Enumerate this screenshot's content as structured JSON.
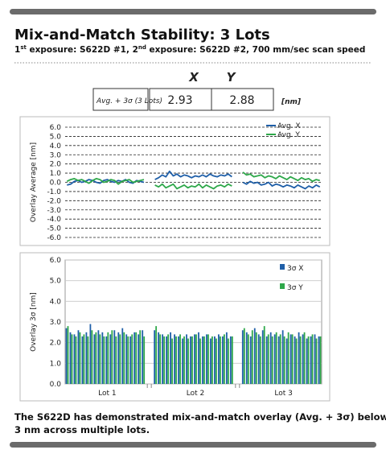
{
  "header": {
    "title": "Mix-and-Match Stability: 3 Lots",
    "subtitle": [
      "1",
      "st",
      " exposure: S622D #1, 2",
      "nd",
      " exposure: S622D #2, 700 mm/sec scan speed"
    ]
  },
  "table": {
    "columns": [
      "X",
      "Y"
    ],
    "row_label": "Avg. + 3σ (3 Lots)",
    "values": [
      2.93,
      2.88
    ],
    "unit": "[nm]"
  },
  "chart_data": [
    {
      "type": "line",
      "ylabel": "Overlay Average [nm]",
      "ylim": [
        -6,
        6
      ],
      "yticks": [
        {
          "value": -6,
          "label": "-6.0"
        },
        {
          "value": -5,
          "label": "-5.0"
        },
        {
          "value": -4,
          "label": "-4.0"
        },
        {
          "value": -3,
          "label": "-3.0"
        },
        {
          "value": -2,
          "label": "-2.0"
        },
        {
          "value": -1,
          "label": "-1.0"
        },
        {
          "value": 0,
          "label": "0.0"
        },
        {
          "value": 1,
          "label": "1.0"
        },
        {
          "value": 2,
          "label": "2.0"
        },
        {
          "value": 3,
          "label": "3.0"
        },
        {
          "value": 4,
          "label": "4.0"
        },
        {
          "value": 5,
          "label": "5.0"
        },
        {
          "value": 6,
          "label": "6.0"
        }
      ],
      "grid": true,
      "grid_style": "dashed",
      "legend": "upper right",
      "series": [
        {
          "name": "Avg. X",
          "color": "#1f5fa8",
          "values": [
            -0.3,
            -0.2,
            0.1,
            0.2,
            0.0,
            0.1,
            0.3,
            0.2,
            0.0,
            -0.1,
            0.2,
            0.3,
            0.1,
            0.0,
            0.2,
            0.1,
            0.3,
            0.0,
            -0.1,
            0.2,
            0.1,
            0.0,
            null,
            null,
            0.3,
            0.5,
            0.8,
            0.6,
            1.2,
            0.7,
            0.9,
            0.6,
            0.8,
            0.7,
            0.5,
            0.7,
            0.6,
            0.8,
            0.6,
            0.9,
            0.7,
            0.6,
            0.8,
            0.7,
            0.9,
            0.6,
            null,
            null,
            0.0,
            -0.2,
            0.1,
            -0.1,
            0.0,
            -0.3,
            -0.2,
            0.0,
            -0.4,
            -0.2,
            -0.3,
            -0.5,
            -0.3,
            -0.4,
            -0.6,
            -0.3,
            -0.5,
            -0.7,
            -0.4,
            -0.6,
            -0.3,
            -0.5
          ]
        },
        {
          "name": "Avg. Y",
          "color": "#2ea84a",
          "values": [
            0.1,
            0.3,
            0.4,
            0.2,
            0.3,
            0.1,
            -0.1,
            0.2,
            0.4,
            0.3,
            0.0,
            0.1,
            0.3,
            0.2,
            -0.2,
            0.1,
            0.2,
            0.3,
            0.0,
            0.1,
            0.2,
            0.3,
            null,
            null,
            -0.3,
            -0.5,
            -0.2,
            -0.6,
            -0.4,
            -0.2,
            -0.7,
            -0.5,
            -0.3,
            -0.6,
            -0.4,
            -0.5,
            -0.2,
            -0.6,
            -0.3,
            -0.5,
            -0.7,
            -0.4,
            -0.3,
            -0.5,
            -0.2,
            -0.4,
            null,
            null,
            1.1,
            0.8,
            0.9,
            0.6,
            0.7,
            0.8,
            0.5,
            0.7,
            0.6,
            0.4,
            0.7,
            0.5,
            0.3,
            0.6,
            0.4,
            0.2,
            0.5,
            0.3,
            0.4,
            0.1,
            0.3,
            0.2
          ]
        }
      ]
    },
    {
      "type": "bar",
      "ylabel": "Overlay 3σ [nm]",
      "ylim": [
        0,
        6
      ],
      "yticks": [
        {
          "value": 0,
          "label": "0.0"
        },
        {
          "value": 1,
          "label": "1.0"
        },
        {
          "value": 2,
          "label": "2.0"
        },
        {
          "value": 3,
          "label": "3.0"
        },
        {
          "value": 4,
          "label": "4.0"
        },
        {
          "value": 5,
          "label": "5.0"
        },
        {
          "value": 6,
          "label": "6.0"
        }
      ],
      "grid": true,
      "grid_style": "solid",
      "legend": "upper right",
      "categories": [
        null,
        null,
        null,
        null,
        null,
        null,
        null,
        null,
        null,
        null,
        "Lot 1",
        null,
        null,
        null,
        null,
        null,
        null,
        null,
        null,
        null,
        null,
        null,
        null,
        null,
        null,
        null,
        null,
        null,
        null,
        null,
        null,
        null,
        "Lot 2",
        null,
        null,
        null,
        null,
        null,
        null,
        null,
        null,
        null,
        null,
        null,
        null,
        null,
        null,
        null,
        null,
        null,
        null,
        null,
        null,
        null,
        "Lot 3",
        null,
        null,
        null,
        null,
        null,
        null,
        null,
        null,
        null
      ],
      "series": [
        {
          "name": "3σ X",
          "color": "#1f5fa8",
          "values": [
            2.7,
            2.5,
            2.4,
            2.6,
            2.3,
            2.5,
            2.9,
            2.4,
            2.6,
            2.5,
            2.3,
            2.4,
            2.6,
            2.5,
            2.7,
            2.4,
            2.3,
            2.5,
            2.4,
            2.6,
            null,
            null,
            2.6,
            2.5,
            2.4,
            2.3,
            2.5,
            2.4,
            2.3,
            2.2,
            2.4,
            2.3,
            2.4,
            2.5,
            2.3,
            2.4,
            2.2,
            2.3,
            2.4,
            2.3,
            2.5,
            2.3,
            null,
            null,
            2.6,
            2.5,
            2.3,
            2.7,
            2.4,
            2.6,
            2.3,
            2.5,
            2.4,
            2.3,
            2.6,
            2.2,
            2.4,
            2.3,
            2.5,
            2.4,
            2.2,
            2.3,
            2.4,
            2.3
          ]
        },
        {
          "name": "3σ Y",
          "color": "#2ea84a",
          "values": [
            2.8,
            2.4,
            2.3,
            2.5,
            2.4,
            2.3,
            2.6,
            2.5,
            2.4,
            2.3,
            2.5,
            2.6,
            2.3,
            2.4,
            2.5,
            2.3,
            2.4,
            2.5,
            2.6,
            2.3,
            null,
            null,
            2.8,
            2.4,
            2.3,
            2.4,
            2.2,
            2.3,
            2.4,
            2.3,
            2.2,
            2.3,
            2.4,
            2.2,
            2.3,
            2.4,
            2.3,
            2.2,
            2.3,
            2.4,
            2.2,
            2.3,
            null,
            null,
            2.7,
            2.4,
            2.6,
            2.5,
            2.3,
            2.8,
            2.4,
            2.3,
            2.5,
            2.4,
            2.3,
            2.5,
            2.4,
            2.2,
            2.3,
            2.5,
            2.3,
            2.4,
            2.2,
            2.3
          ]
        }
      ]
    }
  ],
  "footer": [
    "The S622D has demonstrated mix-and-match overlay (Avg. + 3σ) below",
    "3 nm across multiple lots."
  ]
}
